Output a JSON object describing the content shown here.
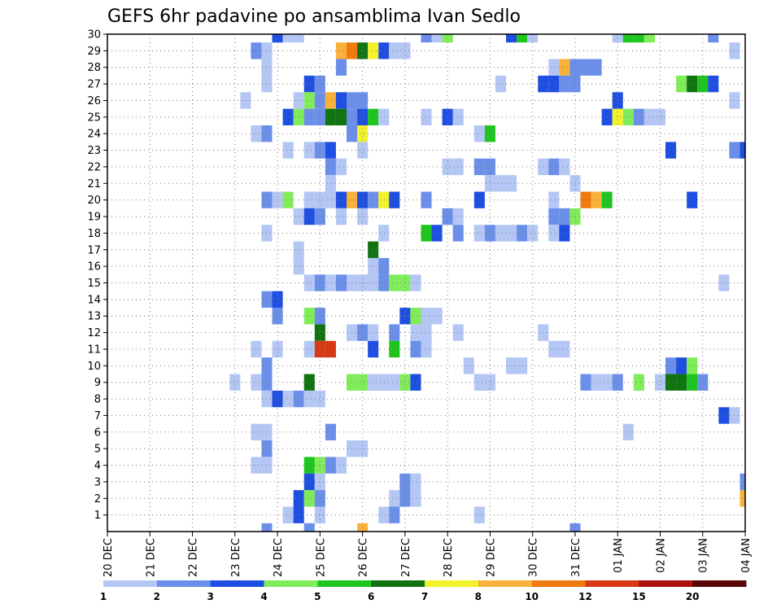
{
  "chart_data": {
    "type": "heatmap",
    "title": "GEFS 6hr padavine po ansamblima Ivan Sedlo",
    "x_tick_labels": [
      "20 DEC",
      "21 DEC",
      "22 DEC",
      "23 DEC",
      "24 DEC",
      "25 DEC",
      "26 DEC",
      "27 DEC",
      "28 DEC",
      "29 DEC",
      "30 DEC",
      "31 DEC",
      "01 JAN",
      "02 JAN",
      "03 JAN",
      "04 JAN"
    ],
    "y_tick_labels": [
      "1",
      "2",
      "3",
      "4",
      "5",
      "6",
      "7",
      "8",
      "9",
      "10",
      "11",
      "12",
      "13",
      "14",
      "15",
      "16",
      "17",
      "18",
      "19",
      "20",
      "21",
      "22",
      "23",
      "24",
      "25",
      "26",
      "27",
      "28",
      "29",
      "30"
    ],
    "x_unit": "6-hour step",
    "x_range": [
      0,
      60
    ],
    "y_range": [
      0,
      30
    ],
    "grid": true,
    "levels": [
      1,
      2,
      3,
      4,
      5,
      6,
      7,
      8,
      10,
      12,
      15,
      20
    ],
    "level_colors": [
      "#b3c6f4",
      "#6b8fe8",
      "#1f4fe0",
      "#80ec5a",
      "#1fc51f",
      "#127312",
      "#f2f22a",
      "#f8b13a",
      "#f07a0e",
      "#d63a15",
      "#a8120f",
      "#5c0707"
    ],
    "legend_labels": [
      "1",
      "2",
      "3",
      "4",
      "5",
      "6",
      "7",
      "8",
      "10",
      "12",
      "15",
      "20"
    ],
    "cells": [
      [
        16,
        30,
        3
      ],
      [
        17,
        30,
        1
      ],
      [
        18,
        30,
        1
      ],
      [
        30,
        30,
        2
      ],
      [
        31,
        30,
        1
      ],
      [
        32,
        30,
        4
      ],
      [
        38,
        30,
        3
      ],
      [
        39,
        30,
        5
      ],
      [
        40,
        30,
        1
      ],
      [
        48,
        30,
        1
      ],
      [
        49,
        30,
        5
      ],
      [
        50,
        30,
        5
      ],
      [
        51,
        30,
        4
      ],
      [
        57,
        30,
        2
      ],
      [
        14,
        29,
        2
      ],
      [
        15,
        29,
        1
      ],
      [
        22,
        29,
        9
      ],
      [
        23,
        29,
        10
      ],
      [
        24,
        29,
        6
      ],
      [
        25,
        29,
        7
      ],
      [
        26,
        29,
        3
      ],
      [
        27,
        29,
        1
      ],
      [
        28,
        29,
        1
      ],
      [
        59,
        29,
        1
      ],
      [
        15,
        28,
        1
      ],
      [
        22,
        28,
        2
      ],
      [
        42,
        28,
        1
      ],
      [
        43,
        28,
        8
      ],
      [
        44,
        28,
        2
      ],
      [
        45,
        28,
        2
      ],
      [
        46,
        28,
        2
      ],
      [
        15,
        27,
        1
      ],
      [
        19,
        27,
        3
      ],
      [
        20,
        27,
        2
      ],
      [
        37,
        27,
        1
      ],
      [
        41,
        27,
        3
      ],
      [
        42,
        27,
        3
      ],
      [
        43,
        27,
        2
      ],
      [
        44,
        27,
        2
      ],
      [
        54,
        27,
        4
      ],
      [
        55,
        27,
        6
      ],
      [
        56,
        27,
        5
      ],
      [
        57,
        27,
        3
      ],
      [
        13,
        26,
        1
      ],
      [
        18,
        26,
        1
      ],
      [
        19,
        26,
        4
      ],
      [
        20,
        26,
        2
      ],
      [
        21,
        26,
        9
      ],
      [
        22,
        26,
        3
      ],
      [
        23,
        26,
        2
      ],
      [
        24,
        26,
        2
      ],
      [
        48,
        26,
        3
      ],
      [
        59,
        26,
        1
      ],
      [
        17,
        25,
        3
      ],
      [
        18,
        25,
        4
      ],
      [
        19,
        25,
        2
      ],
      [
        20,
        25,
        2
      ],
      [
        21,
        25,
        6
      ],
      [
        22,
        25,
        6
      ],
      [
        23,
        25,
        2
      ],
      [
        24,
        25,
        3
      ],
      [
        25,
        25,
        5
      ],
      [
        26,
        25,
        1
      ],
      [
        30,
        25,
        1
      ],
      [
        32,
        25,
        3
      ],
      [
        33,
        25,
        1
      ],
      [
        47,
        25,
        3
      ],
      [
        48,
        25,
        7
      ],
      [
        49,
        25,
        4
      ],
      [
        50,
        25,
        2
      ],
      [
        51,
        25,
        1
      ],
      [
        52,
        25,
        1
      ],
      [
        14,
        24,
        1
      ],
      [
        15,
        24,
        2
      ],
      [
        23,
        24,
        2
      ],
      [
        24,
        24,
        7
      ],
      [
        35,
        24,
        1
      ],
      [
        36,
        24,
        5
      ],
      [
        17,
        23,
        1
      ],
      [
        19,
        23,
        1
      ],
      [
        20,
        23,
        2
      ],
      [
        21,
        23,
        3
      ],
      [
        24,
        23,
        1
      ],
      [
        53,
        23,
        3
      ],
      [
        59,
        23,
        2
      ],
      [
        60,
        23,
        3
      ],
      [
        21,
        22,
        2
      ],
      [
        22,
        22,
        1
      ],
      [
        32,
        22,
        1
      ],
      [
        33,
        22,
        1
      ],
      [
        35,
        22,
        2
      ],
      [
        36,
        22,
        2
      ],
      [
        41,
        22,
        1
      ],
      [
        42,
        22,
        2
      ],
      [
        43,
        22,
        1
      ],
      [
        21,
        21,
        1
      ],
      [
        36,
        21,
        1
      ],
      [
        37,
        21,
        1
      ],
      [
        38,
        21,
        1
      ],
      [
        44,
        21,
        1
      ],
      [
        15,
        20,
        2
      ],
      [
        16,
        20,
        1
      ],
      [
        17,
        20,
        4
      ],
      [
        19,
        20,
        1
      ],
      [
        20,
        20,
        1
      ],
      [
        21,
        20,
        1
      ],
      [
        22,
        20,
        3
      ],
      [
        23,
        20,
        9
      ],
      [
        24,
        20,
        3
      ],
      [
        25,
        20,
        2
      ],
      [
        26,
        20,
        7
      ],
      [
        27,
        20,
        3
      ],
      [
        30,
        20,
        2
      ],
      [
        35,
        20,
        3
      ],
      [
        42,
        20,
        1
      ],
      [
        45,
        20,
        10
      ],
      [
        46,
        20,
        9
      ],
      [
        47,
        20,
        5
      ],
      [
        55,
        20,
        3
      ],
      [
        18,
        19,
        1
      ],
      [
        19,
        19,
        3
      ],
      [
        20,
        19,
        2
      ],
      [
        22,
        19,
        1
      ],
      [
        24,
        19,
        1
      ],
      [
        32,
        19,
        2
      ],
      [
        33,
        19,
        1
      ],
      [
        42,
        19,
        2
      ],
      [
        43,
        19,
        2
      ],
      [
        44,
        19,
        4
      ],
      [
        15,
        18,
        1
      ],
      [
        26,
        18,
        1
      ],
      [
        30,
        18,
        5
      ],
      [
        31,
        18,
        3
      ],
      [
        33,
        18,
        2
      ],
      [
        35,
        18,
        1
      ],
      [
        36,
        18,
        2
      ],
      [
        37,
        18,
        1
      ],
      [
        38,
        18,
        1
      ],
      [
        39,
        18,
        2
      ],
      [
        40,
        18,
        1
      ],
      [
        42,
        18,
        1
      ],
      [
        43,
        18,
        3
      ],
      [
        18,
        17,
        1
      ],
      [
        25,
        17,
        6
      ],
      [
        18,
        16,
        1
      ],
      [
        25,
        16,
        1
      ],
      [
        26,
        16,
        2
      ],
      [
        19,
        15,
        1
      ],
      [
        20,
        15,
        2
      ],
      [
        21,
        15,
        1
      ],
      [
        22,
        15,
        2
      ],
      [
        23,
        15,
        1
      ],
      [
        24,
        15,
        1
      ],
      [
        25,
        15,
        1
      ],
      [
        26,
        15,
        2
      ],
      [
        27,
        15,
        4
      ],
      [
        28,
        15,
        4
      ],
      [
        29,
        15,
        1
      ],
      [
        58,
        15,
        1
      ],
      [
        15,
        14,
        2
      ],
      [
        16,
        14,
        3
      ],
      [
        16,
        13,
        2
      ],
      [
        19,
        13,
        4
      ],
      [
        20,
        13,
        2
      ],
      [
        28,
        13,
        3
      ],
      [
        29,
        13,
        4
      ],
      [
        30,
        13,
        1
      ],
      [
        31,
        13,
        1
      ],
      [
        20,
        12,
        6
      ],
      [
        23,
        12,
        1
      ],
      [
        24,
        12,
        2
      ],
      [
        25,
        12,
        1
      ],
      [
        27,
        12,
        2
      ],
      [
        29,
        12,
        1
      ],
      [
        30,
        12,
        1
      ],
      [
        33,
        12,
        1
      ],
      [
        41,
        12,
        1
      ],
      [
        14,
        11,
        1
      ],
      [
        16,
        11,
        1
      ],
      [
        19,
        11,
        1
      ],
      [
        20,
        11,
        13
      ],
      [
        21,
        11,
        14
      ],
      [
        25,
        11,
        3
      ],
      [
        27,
        11,
        5
      ],
      [
        29,
        11,
        2
      ],
      [
        30,
        11,
        1
      ],
      [
        42,
        11,
        1
      ],
      [
        43,
        11,
        1
      ],
      [
        15,
        10,
        2
      ],
      [
        34,
        10,
        1
      ],
      [
        38,
        10,
        1
      ],
      [
        39,
        10,
        1
      ],
      [
        53,
        10,
        2
      ],
      [
        54,
        10,
        3
      ],
      [
        55,
        10,
        4
      ],
      [
        12,
        9,
        1
      ],
      [
        14,
        9,
        1
      ],
      [
        15,
        9,
        2
      ],
      [
        19,
        9,
        6
      ],
      [
        23,
        9,
        4
      ],
      [
        24,
        9,
        4
      ],
      [
        25,
        9,
        1
      ],
      [
        26,
        9,
        1
      ],
      [
        27,
        9,
        1
      ],
      [
        28,
        9,
        4
      ],
      [
        29,
        9,
        3
      ],
      [
        35,
        9,
        1
      ],
      [
        36,
        9,
        1
      ],
      [
        45,
        9,
        2
      ],
      [
        46,
        9,
        1
      ],
      [
        47,
        9,
        1
      ],
      [
        48,
        9,
        2
      ],
      [
        50,
        9,
        4
      ],
      [
        52,
        9,
        1
      ],
      [
        53,
        9,
        6
      ],
      [
        54,
        9,
        6
      ],
      [
        55,
        9,
        5
      ],
      [
        56,
        9,
        2
      ],
      [
        15,
        8,
        1
      ],
      [
        16,
        8,
        3
      ],
      [
        17,
        8,
        1
      ],
      [
        18,
        8,
        2
      ],
      [
        19,
        8,
        1
      ],
      [
        20,
        8,
        1
      ],
      [
        58,
        7,
        3
      ],
      [
        59,
        7,
        1
      ],
      [
        14,
        6,
        1
      ],
      [
        15,
        6,
        1
      ],
      [
        21,
        6,
        2
      ],
      [
        49,
        6,
        1
      ],
      [
        15,
        5,
        2
      ],
      [
        23,
        5,
        1
      ],
      [
        24,
        5,
        1
      ],
      [
        14,
        4,
        1
      ],
      [
        15,
        4,
        1
      ],
      [
        19,
        4,
        5
      ],
      [
        20,
        4,
        4
      ],
      [
        21,
        4,
        2
      ],
      [
        22,
        4,
        1
      ],
      [
        19,
        3,
        3
      ],
      [
        20,
        3,
        1
      ],
      [
        28,
        3,
        2
      ],
      [
        29,
        3,
        1
      ],
      [
        60,
        3,
        2
      ],
      [
        18,
        2,
        3
      ],
      [
        19,
        2,
        4
      ],
      [
        20,
        2,
        2
      ],
      [
        27,
        2,
        1
      ],
      [
        28,
        2,
        2
      ],
      [
        29,
        2,
        1
      ],
      [
        60,
        2,
        9
      ],
      [
        17,
        1,
        1
      ],
      [
        18,
        1,
        3
      ],
      [
        20,
        1,
        1
      ],
      [
        26,
        1,
        1
      ],
      [
        27,
        1,
        2
      ],
      [
        35,
        1,
        1
      ],
      [
        15,
        0,
        2
      ],
      [
        19,
        0,
        2
      ],
      [
        24,
        0,
        9
      ],
      [
        44,
        0,
        2
      ]
    ]
  }
}
